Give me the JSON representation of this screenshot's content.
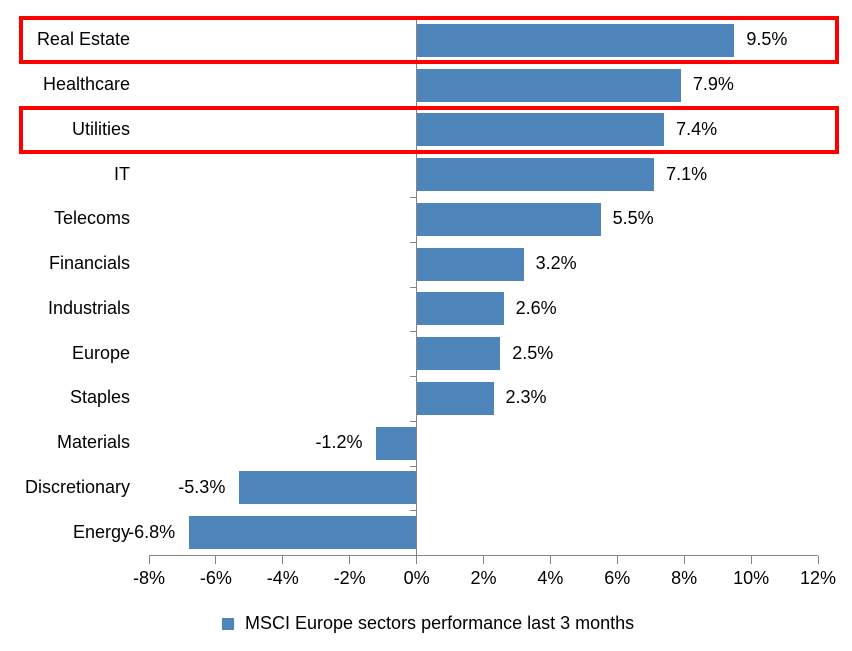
{
  "chart_data": {
    "type": "bar",
    "orientation": "horizontal",
    "title": "",
    "categories": [
      "Real Estate",
      "Healthcare",
      "Utilities",
      "IT",
      "Telecoms",
      "Financials",
      "Industrials",
      "Europe",
      "Staples",
      "Materials",
      "Discretionary",
      "Energy"
    ],
    "values": [
      9.5,
      7.9,
      7.4,
      7.1,
      5.5,
      3.2,
      2.6,
      2.5,
      2.3,
      -1.2,
      -5.3,
      -6.8
    ],
    "value_labels": [
      "9.5%",
      "7.9%",
      "7.4%",
      "7.1%",
      "5.5%",
      "3.2%",
      "2.6%",
      "2.5%",
      "2.3%",
      "-1.2%",
      "-5.3%",
      "-6.8%"
    ],
    "x_tick_values": [
      -8,
      -6,
      -4,
      -2,
      0,
      2,
      4,
      6,
      8,
      10,
      12
    ],
    "x_tick_labels": [
      "-8%",
      "-6%",
      "-4%",
      "-2%",
      "0%",
      "2%",
      "4%",
      "6%",
      "8%",
      "10%",
      "12%"
    ],
    "xlim": [
      -8,
      12
    ],
    "grid": false,
    "legend_position": "bottom",
    "legend_label": "MSCI Europe sectors performance last 3 months",
    "bar_color": "#4e86bc",
    "axis_color": "#848484",
    "highlight_color": "#ff0000",
    "highlighted_categories": [
      "Real Estate",
      "Utilities"
    ]
  }
}
